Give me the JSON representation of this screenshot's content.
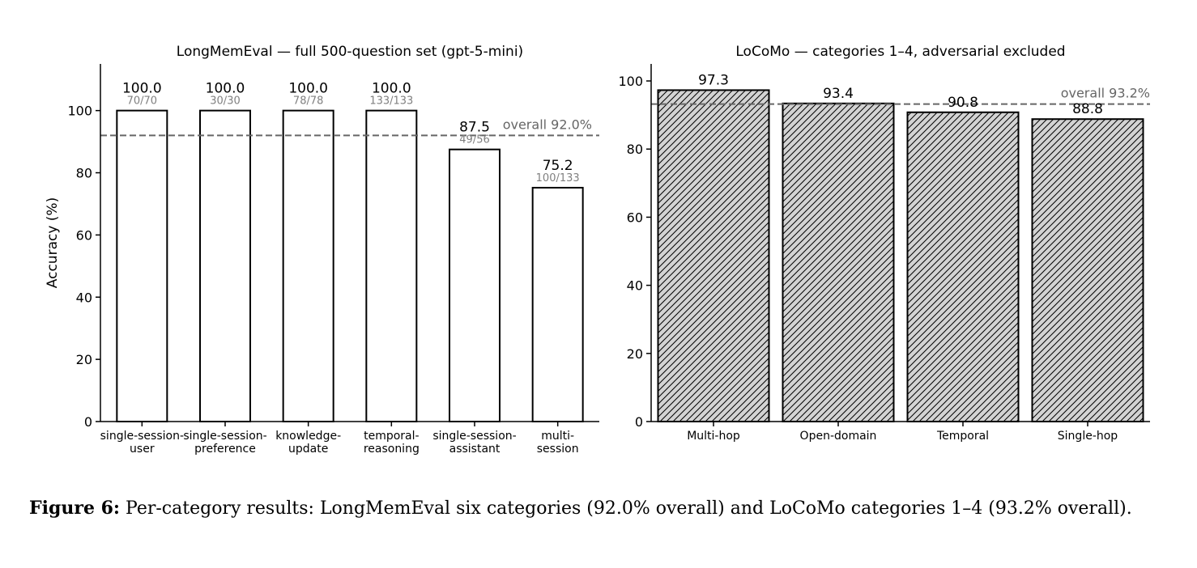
{
  "colors": {
    "axis": "#000000",
    "bar_edge": "#000000",
    "bar_fill_left": "#ffffff",
    "bar_fill_right": "#d3d3d3",
    "hatch": "#000000",
    "overall_line": "#666666",
    "count_text": "#808080"
  },
  "chart_data": [
    {
      "type": "bar",
      "title": "LongMemEval — full 500-question set (gpt-5-mini)",
      "ylabel": "Accuracy (%)",
      "xlabel": "",
      "ylim": [
        0,
        115
      ],
      "yticks": [
        0,
        20,
        40,
        60,
        80,
        100
      ],
      "grid": false,
      "categories": [
        [
          "single-session-",
          "user"
        ],
        [
          "single-session-",
          "preference"
        ],
        [
          "knowledge-",
          "update"
        ],
        [
          "temporal-",
          "reasoning"
        ],
        [
          "single-session-",
          "assistant"
        ],
        [
          "multi-",
          "session"
        ]
      ],
      "values": [
        100.0,
        100.0,
        100.0,
        100.0,
        87.5,
        75.2
      ],
      "value_labels": [
        "100.0",
        "100.0",
        "100.0",
        "100.0",
        "87.5",
        "75.2"
      ],
      "counts": [
        "70/70",
        "30/30",
        "78/78",
        "133/133",
        "49/56",
        "100/133"
      ],
      "overall": 92.0,
      "overall_label": "overall 92.0%",
      "hatched": false
    },
    {
      "type": "bar",
      "title": "LoCoMo — categories 1–4, adversarial excluded",
      "ylabel": "",
      "xlabel": "",
      "ylim": [
        0,
        105
      ],
      "yticks": [
        0,
        20,
        40,
        60,
        80,
        100
      ],
      "grid": false,
      "categories": [
        [
          "Multi-hop"
        ],
        [
          "Open-domain"
        ],
        [
          "Temporal"
        ],
        [
          "Single-hop"
        ]
      ],
      "values": [
        97.3,
        93.4,
        90.8,
        88.8
      ],
      "value_labels": [
        "97.3",
        "93.4",
        "90.8",
        "88.8"
      ],
      "counts": [],
      "overall": 93.2,
      "overall_label": "overall 93.2%",
      "hatched": true
    }
  ],
  "caption": {
    "label": "Figure 6:",
    "text": " Per-category results: LongMemEval six categories (92.0% overall) and LoCoMo categories 1–4 (93.2% overall)."
  }
}
